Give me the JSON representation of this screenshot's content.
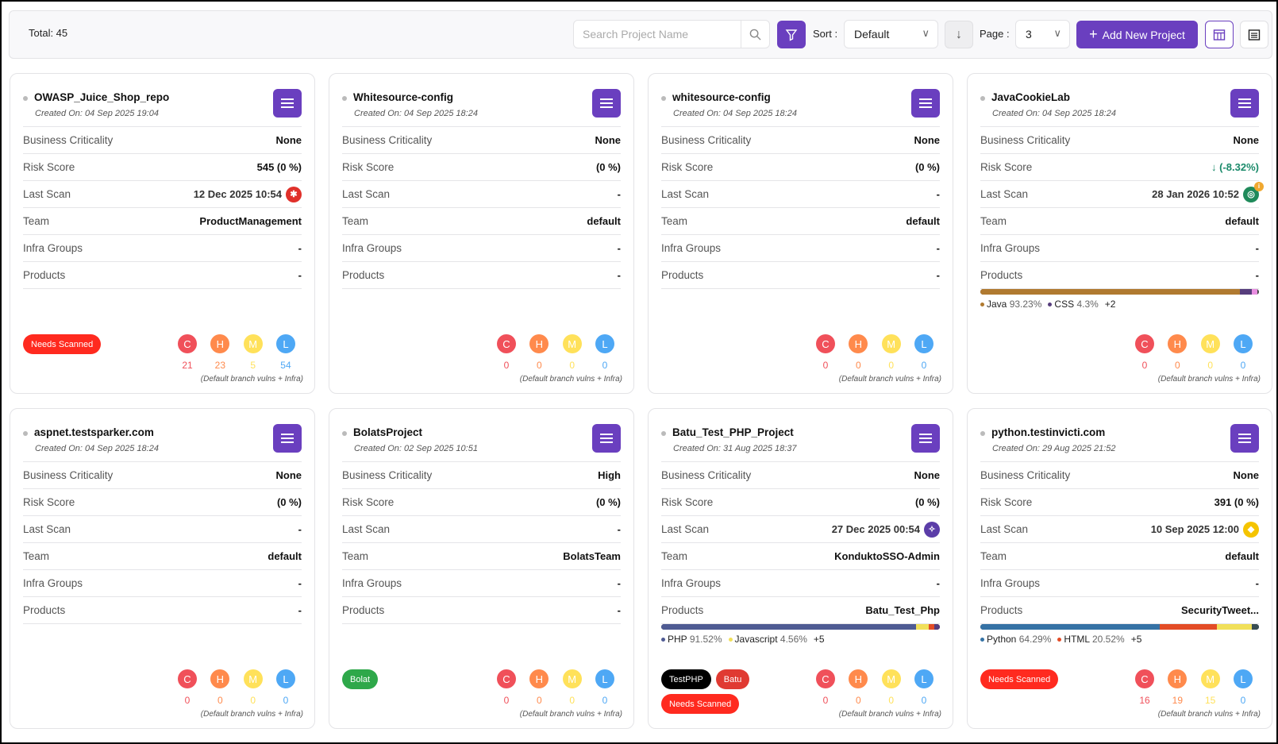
{
  "toolbar": {
    "total": "Total: 45",
    "search_placeholder": "Search Project Name",
    "sort_label": "Sort :",
    "sort_value": "Default",
    "page_label": "Page :",
    "page_value": "3",
    "add_label": "Add New Project"
  },
  "labels": {
    "business_criticality": "Business Criticality",
    "risk_score": "Risk Score",
    "last_scan": "Last Scan",
    "team": "Team",
    "infra_groups": "Infra Groups",
    "products": "Products",
    "footnote": "(Default branch vulns + Infra)",
    "sev": [
      "C",
      "H",
      "M",
      "L"
    ]
  },
  "colors": {
    "accent": "#6a3fbf",
    "critical": "#f0505a",
    "high": "#ff8a4c",
    "medium": "#ffe15a",
    "low": "#4ea8f5"
  },
  "projects": [
    {
      "name": "OWASP_Juice_Shop_repo",
      "created": "Created On: 04 Sep 2025 19:04",
      "criticality": "None",
      "risk": "545 (0 %)",
      "last_scan": "12 Dec 2025 10:54",
      "scan_icon": "bug-icon",
      "team": "ProductManagement",
      "infra": "-",
      "products": "-",
      "langs": null,
      "tags": [
        {
          "label": "Needs Scanned",
          "color": "#ff2a1f"
        }
      ],
      "counts": [
        "21",
        "23",
        "5",
        "54"
      ]
    },
    {
      "name": "Whitesource-config",
      "created": "Created On: 04 Sep 2025 18:24",
      "criticality": "None",
      "risk": "(0 %)",
      "last_scan": "-",
      "team": "default",
      "infra": "-",
      "products": "-",
      "langs": null,
      "tags": [],
      "counts": [
        "0",
        "0",
        "0",
        "0"
      ]
    },
    {
      "name": "whitesource-config",
      "created": "Created On: 04 Sep 2025 18:24",
      "criticality": "None",
      "risk": "(0 %)",
      "last_scan": "-",
      "team": "default",
      "infra": "-",
      "products": "-",
      "langs": null,
      "tags": [],
      "counts": [
        "0",
        "0",
        "0",
        "0"
      ]
    },
    {
      "name": "JavaCookieLab",
      "created": "Created On: 04 Sep 2025 18:24",
      "criticality": "None",
      "risk": "↓ (-8.32%)",
      "risk_trend": "down",
      "last_scan": "28 Jan 2026 10:52",
      "scan_icon": "radar-icon",
      "team": "default",
      "infra": "-",
      "products": "-",
      "langs": {
        "segments": [
          {
            "name": "Java",
            "pct": 93.23,
            "color": "#b07a30"
          },
          {
            "name": "CSS",
            "pct": 4.3,
            "color": "#563d7c"
          },
          {
            "name": "other",
            "pct": 1.8,
            "color": "#e88ee0"
          }
        ],
        "legend": [
          {
            "name": "Java",
            "pct": "93.23%",
            "color": "#b07a30"
          },
          {
            "name": "CSS",
            "pct": "4.3%",
            "color": "#563d7c"
          }
        ],
        "more": "+2"
      },
      "tags": [],
      "counts": [
        "0",
        "0",
        "0",
        "0"
      ]
    },
    {
      "name": "aspnet.testsparker.com",
      "created": "Created On: 04 Sep 2025 18:24",
      "criticality": "None",
      "risk": "(0 %)",
      "last_scan": "-",
      "team": "default",
      "infra": "-",
      "products": "-",
      "langs": null,
      "tags": [],
      "counts": [
        "0",
        "0",
        "0",
        "0"
      ]
    },
    {
      "name": "BolatsProject",
      "created": "Created On: 02 Sep 2025 10:51",
      "criticality": "High",
      "risk": "(0 %)",
      "last_scan": "-",
      "team": "BolatsTeam",
      "infra": "-",
      "products": "-",
      "langs": null,
      "tags": [
        {
          "label": "Bolat",
          "color": "#2ea84a"
        }
      ],
      "counts": [
        "0",
        "0",
        "0",
        "0"
      ]
    },
    {
      "name": "Batu_Test_PHP_Project",
      "created": "Created On: 31 Aug 2025 18:37",
      "criticality": "None",
      "risk": "(0 %)",
      "last_scan": "27 Dec 2025 00:54",
      "scan_icon": "scanner-icon",
      "team": "KonduktoSSO-Admin",
      "infra": "-",
      "products": "Batu_Test_Php",
      "langs": {
        "segments": [
          {
            "name": "PHP",
            "pct": 91.52,
            "color": "#4f5b93"
          },
          {
            "name": "Javascript",
            "pct": 4.56,
            "color": "#f1e05a"
          },
          {
            "name": "other1",
            "pct": 1.8,
            "color": "#e34c26"
          },
          {
            "name": "other2",
            "pct": 2.1,
            "color": "#563d7c"
          }
        ],
        "legend": [
          {
            "name": "PHP",
            "pct": "91.52%",
            "color": "#4f5b93"
          },
          {
            "name": "Javascript",
            "pct": "4.56%",
            "color": "#f1e05a"
          }
        ],
        "more": "+5"
      },
      "tags": [
        {
          "label": "TestPHP",
          "color": "#000000"
        },
        {
          "label": "Batu",
          "color": "#e03a32"
        },
        {
          "label": "Needs Scanned",
          "color": "#ff2a1f"
        }
      ],
      "counts": [
        "0",
        "0",
        "0",
        "0"
      ]
    },
    {
      "name": "python.testinvicti.com",
      "created": "Created On: 29 Aug 2025 21:52",
      "criticality": "None",
      "risk": "391 (0 %)",
      "last_scan": "10 Sep 2025 12:00",
      "scan_icon": "bakit-logo-icon",
      "team": "default",
      "infra": "-",
      "products": "SecurityTweet...",
      "langs": {
        "segments": [
          {
            "name": "Python",
            "pct": 64.29,
            "color": "#3572a5"
          },
          {
            "name": "HTML",
            "pct": 20.52,
            "color": "#e34c26"
          },
          {
            "name": "other1",
            "pct": 12.6,
            "color": "#f1e05a"
          },
          {
            "name": "other2",
            "pct": 2.6,
            "color": "#384d54"
          }
        ],
        "legend": [
          {
            "name": "Python",
            "pct": "64.29%",
            "color": "#3572a5"
          },
          {
            "name": "HTML",
            "pct": "20.52%",
            "color": "#e34c26"
          }
        ],
        "more": "+5"
      },
      "tags": [
        {
          "label": "Needs Scanned",
          "color": "#ff2a1f"
        }
      ],
      "counts": [
        "16",
        "19",
        "15",
        "0"
      ]
    }
  ]
}
